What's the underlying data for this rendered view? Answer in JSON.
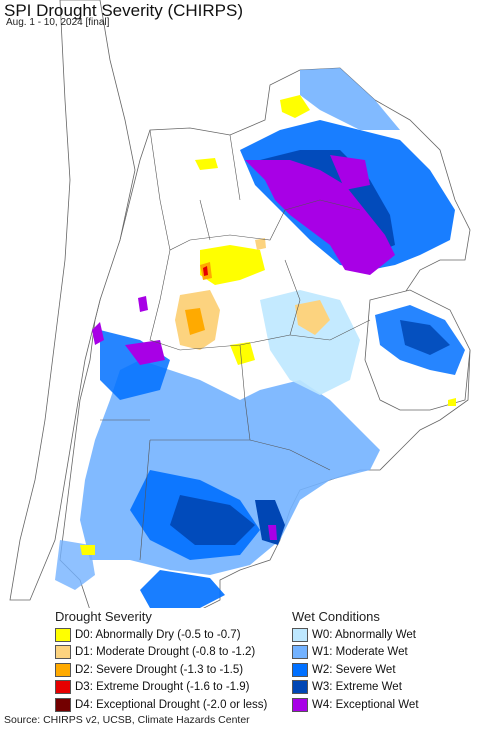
{
  "title": "SPI Drought Severity (CHIRPS)",
  "subtitle": "Aug. 1 - 10, 2024 [final]",
  "legend": {
    "drought_heading": "Drought Severity",
    "wet_heading": "Wet Conditions",
    "drought_items": [
      {
        "label": "D0: Abnormally Dry (-0.5 to -0.7)",
        "color": "#ffff00"
      },
      {
        "label": "D1: Moderate Drought (-0.8 to -1.2)",
        "color": "#fcd37f"
      },
      {
        "label": "D2: Severe Drought (-1.3 to -1.5)",
        "color": "#ffaa00"
      },
      {
        "label": "D3: Extreme Drought (-1.6 to -1.9)",
        "color": "#e60000"
      },
      {
        "label": "D4: Exceptional Drought (-2.0 or less)",
        "color": "#730000"
      }
    ],
    "wet_items": [
      {
        "label": "W0: Abnormally Wet",
        "color": "#bee8ff"
      },
      {
        "label": "W1: Moderate Wet",
        "color": "#73b2ff"
      },
      {
        "label": "W2: Severe Wet",
        "color": "#0070ff"
      },
      {
        "label": "W3: Extreme Wet",
        "color": "#0046b4"
      },
      {
        "label": "W4: Exceptional Wet",
        "color": "#a800e6"
      }
    ]
  },
  "source": "Source: CHIRPS v2, UCSB, Climate Hazards Center"
}
